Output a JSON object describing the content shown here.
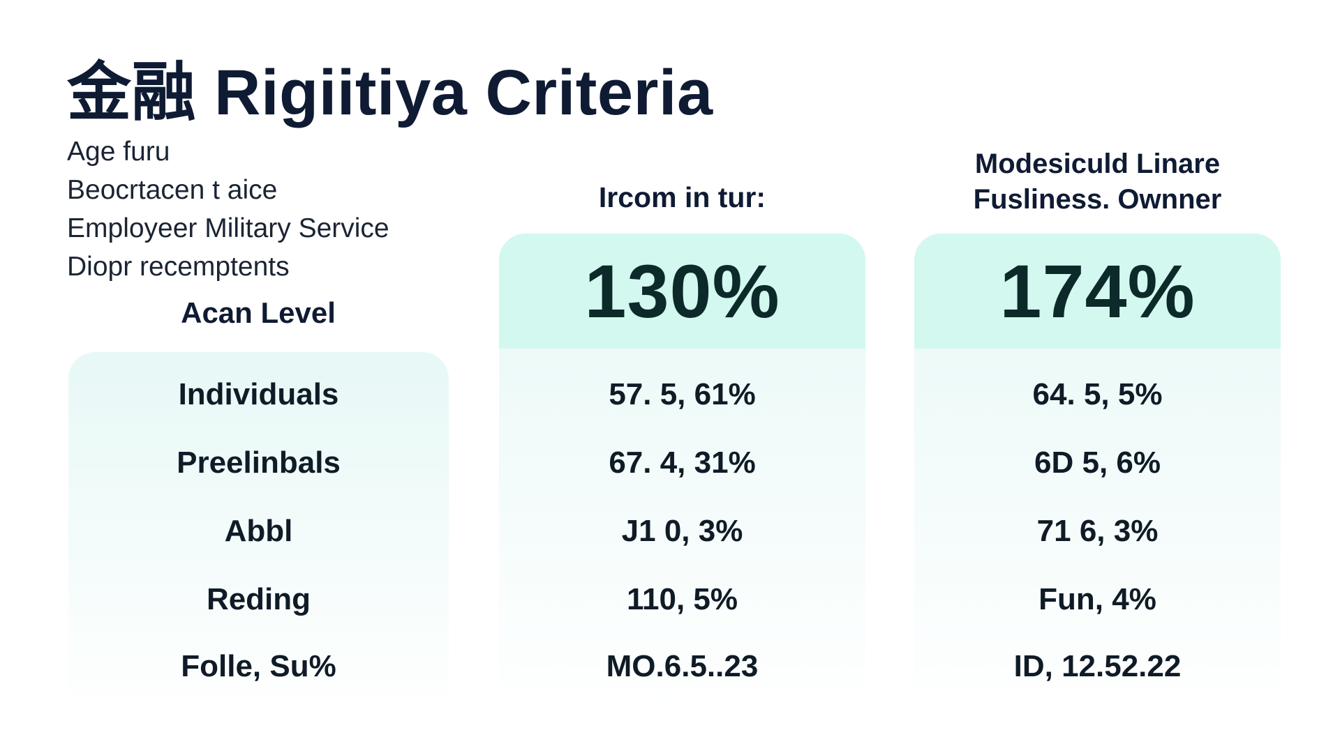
{
  "title": "金融 Rigiitiya Criteria",
  "criteria": [
    "Age furu",
    "Beocrtacen t aice",
    "Employeer Military Service",
    "Diopr recemptents"
  ],
  "columns": {
    "level_header": "Acan Level",
    "income_header": "Ircom in tur:",
    "business_header_line1": "Modesiculd Linare",
    "business_header_line2": "Fusliness. Ownner"
  },
  "highlights": {
    "income": "130%",
    "business": "174%"
  },
  "rows": [
    {
      "level": "Individuals",
      "income": "57. 5, 61%",
      "business": "64. 5, 5%"
    },
    {
      "level": "Preelinbals",
      "income": "67. 4, 31%",
      "business": "6D 5, 6%"
    },
    {
      "level": "Abbl",
      "income": "J1 0, 3%",
      "business": "71 6, 3%"
    },
    {
      "level": "Reding",
      "income": "110, 5%",
      "business": "Fun, 4%"
    },
    {
      "level": "Folle, Su%",
      "income": "MO.6.5..23",
      "business": "ID, 12.52.22"
    }
  ],
  "colors": {
    "highlight": "#d3f8ef",
    "panel_top": "#e7f8f6",
    "text_dark": "#0f1b33"
  }
}
